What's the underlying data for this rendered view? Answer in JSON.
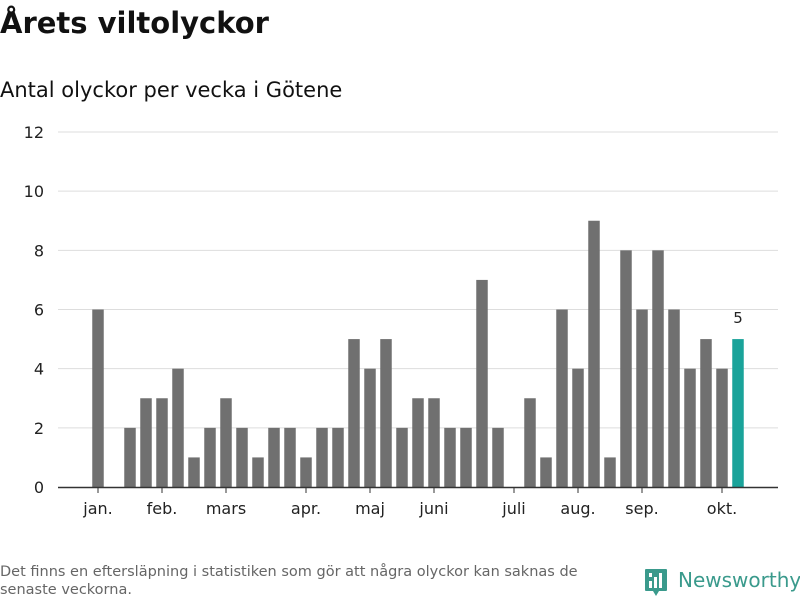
{
  "title": "Årets viltolyckor",
  "subtitle": "Antal olyckor per vecka i Götene",
  "footnote": "Det finns en eftersläpning i statistiken som gör att några olyckor kan saknas de senaste veckorna.",
  "brand": {
    "name": "Newsworthy",
    "icon": "newsworthy-logo-icon",
    "color": "#3a9a8c"
  },
  "chart_data": {
    "type": "bar",
    "title": "Antal olyckor per vecka i Götene",
    "xlabel": "",
    "ylabel": "",
    "ylim": [
      0,
      12
    ],
    "yticks": [
      0,
      2,
      4,
      6,
      8,
      10,
      12
    ],
    "grid": true,
    "legend": "none",
    "month_labels": [
      "jan.",
      "feb.",
      "mars",
      "apr.",
      "maj",
      "juni",
      "juli",
      "aug.",
      "sep.",
      "okt."
    ],
    "values": [
      6,
      0,
      2,
      3,
      3,
      4,
      1,
      2,
      3,
      2,
      1,
      2,
      2,
      1,
      2,
      2,
      5,
      4,
      5,
      2,
      3,
      3,
      2,
      2,
      7,
      2,
      0,
      3,
      1,
      6,
      4,
      9,
      1,
      8,
      6,
      8,
      6,
      4,
      5,
      4,
      5
    ],
    "bar_color": "#707070",
    "highlight_color": "#1aa39a",
    "highlight_index": 40,
    "data_labels": [
      {
        "index": 40,
        "text": "5"
      }
    ]
  }
}
